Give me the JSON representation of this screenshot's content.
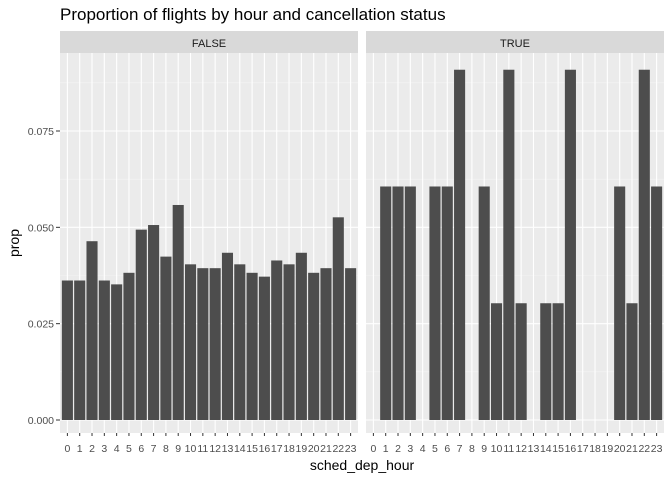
{
  "chart_data": {
    "type": "bar",
    "title": "Proportion of flights by hour and cancellation status",
    "xlabel": "sched_dep_hour",
    "ylabel": "prop",
    "ylim": [
      0,
      0.095
    ],
    "yticks": [
      0.0,
      0.025,
      0.05,
      0.075
    ],
    "ytick_labels": [
      "0.000",
      "0.025",
      "0.050",
      "0.075"
    ],
    "categories": [
      "0",
      "1",
      "2",
      "3",
      "4",
      "5",
      "6",
      "7",
      "8",
      "9",
      "10",
      "11",
      "12",
      "13",
      "14",
      "15",
      "16",
      "17",
      "18",
      "19",
      "20",
      "21",
      "22",
      "23"
    ],
    "bar_color": "#4d4d4d",
    "panel_background": "#ebebeb",
    "strip_background": "#d9d9d9",
    "grid": true,
    "facets": [
      {
        "label": "FALSE",
        "values": [
          0.0362,
          0.0362,
          0.0464,
          0.0362,
          0.0352,
          0.0382,
          0.0494,
          0.0506,
          0.0424,
          0.0558,
          0.0404,
          0.0394,
          0.0394,
          0.0434,
          0.0404,
          0.0382,
          0.0372,
          0.0414,
          0.0404,
          0.0434,
          0.0382,
          0.0394,
          0.0526,
          0.0394
        ]
      },
      {
        "label": "TRUE",
        "values": [
          0,
          0.0606,
          0.0606,
          0.0606,
          0,
          0.0606,
          0.0606,
          0.0909,
          0,
          0.0606,
          0.0303,
          0.0909,
          0.0303,
          0,
          0.0303,
          0.0303,
          0.0909,
          0,
          0,
          0,
          0.0606,
          0.0303,
          0.0909,
          0.0606
        ]
      }
    ]
  }
}
